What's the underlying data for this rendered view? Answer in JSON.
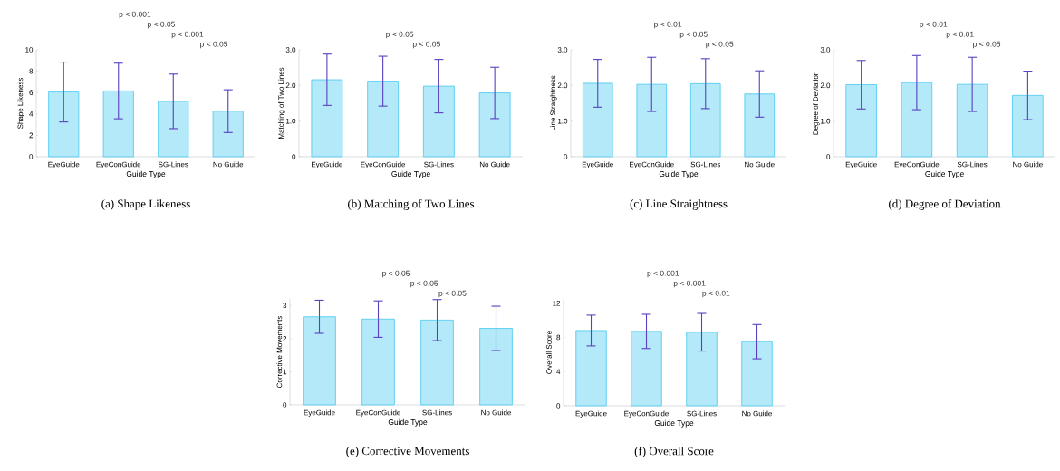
{
  "chart_data": [
    {
      "type": "bar",
      "title": "(a)  Shape Likeness",
      "xlabel": "Guide Type",
      "ylabel": "Shape Likeness",
      "categories": [
        "EyeGuide",
        "EyeConGuide",
        "SG-Lines",
        "No Guide"
      ],
      "values": [
        6.05,
        6.15,
        5.18,
        4.26
      ],
      "errors": [
        2.8,
        2.6,
        2.55,
        2.0
      ],
      "color": "#b3e9f9",
      "ylim": [
        0,
        10
      ],
      "yticks": [
        0,
        2,
        4,
        6,
        8,
        10
      ],
      "annotations": [
        "p < 0.001",
        "p < 0.05",
        "p < 0.001",
        "p < 0.05"
      ]
    },
    {
      "type": "bar",
      "title": "(b)  Matching of Two Lines",
      "xlabel": "Guide Type",
      "ylabel": "Matching of Two Lines",
      "categories": [
        "EyeGuide",
        "EyeConGuide",
        "SG-Lines",
        "No Guide"
      ],
      "values": [
        2.16,
        2.12,
        1.98,
        1.79
      ],
      "errors": [
        0.72,
        0.7,
        0.75,
        0.72
      ],
      "color": "#b3e9f9",
      "ylim": [
        0,
        3
      ],
      "yticks": [
        0,
        {
          "value": 1,
          "label": "1.0"
        },
        {
          "value": 2,
          "label": "2.0"
        },
        {
          "value": 3,
          "label": "3.0"
        }
      ],
      "annotations": [
        "p < 0.05",
        "p < 0.05"
      ]
    },
    {
      "type": "bar",
      "title": "(c)  Line Straightness",
      "xlabel": "Guide Type",
      "ylabel": "Line Straightness",
      "categories": [
        "EyeGuide",
        "EyeConGuide",
        "SG-Lines",
        "No Guide"
      ],
      "values": [
        2.06,
        2.03,
        2.05,
        1.76
      ],
      "errors": [
        0.67,
        0.76,
        0.7,
        0.65
      ],
      "color": "#b3e9f9",
      "ylim": [
        0,
        3
      ],
      "yticks": [
        0,
        {
          "value": 1,
          "label": "1.0"
        },
        {
          "value": 2,
          "label": "2.0"
        },
        {
          "value": 3,
          "label": "3.0"
        }
      ],
      "annotations": [
        "p < 0.01",
        "p < 0.05",
        "p < 0.05"
      ]
    },
    {
      "type": "bar",
      "title": "(d)  Degree of Deviation",
      "xlabel": "Guide Type",
      "ylabel": "Degree of Deviation",
      "categories": [
        "EyeGuide",
        "EyeConGuide",
        "SG-Lines",
        "No Guide"
      ],
      "values": [
        2.02,
        2.08,
        2.03,
        1.72
      ],
      "errors": [
        0.68,
        0.76,
        0.76,
        0.68
      ],
      "color": "#b3e9f9",
      "ylim": [
        0,
        3
      ],
      "yticks": [
        0,
        {
          "value": 1,
          "label": "1.0"
        },
        {
          "value": 2,
          "label": "2.0"
        },
        {
          "value": 3,
          "label": "3.0"
        }
      ],
      "annotations": [
        "p < 0.01",
        "p < 0.01",
        "p < 0.05"
      ]
    },
    {
      "type": "bar",
      "title": "(e)  Corrective Movements",
      "xlabel": "Guide Type",
      "ylabel": "Corrective Movements",
      "categories": [
        "EyeGuide",
        "EyeConGuide",
        "SG-Lines",
        "No Guide"
      ],
      "values": [
        2.66,
        2.59,
        2.56,
        2.31
      ],
      "errors": [
        0.5,
        0.55,
        0.62,
        0.67
      ],
      "color": "#b3e9f9",
      "ylim": [
        0,
        3.2
      ],
      "yticks": [
        0,
        1,
        2,
        3
      ],
      "annotations": [
        "p < 0.05",
        "p < 0.05",
        "p < 0.05"
      ]
    },
    {
      "type": "bar",
      "title": "(f)  Overall Score",
      "xlabel": "Guide Type",
      "ylabel": "Overall Score",
      "categories": [
        "EyeGuide",
        "EyeConGuide",
        "SG-Lines",
        "No Guide"
      ],
      "values": [
        8.8,
        8.7,
        8.6,
        7.5
      ],
      "errors": [
        1.8,
        2.0,
        2.2,
        2.0
      ],
      "color": "#b3e9f9",
      "ylim": [
        0,
        12.5
      ],
      "yticks": [
        0,
        4,
        8,
        12
      ],
      "annotations": [
        "p < 0.001",
        "p < 0.001",
        "p < 0.01"
      ]
    }
  ]
}
